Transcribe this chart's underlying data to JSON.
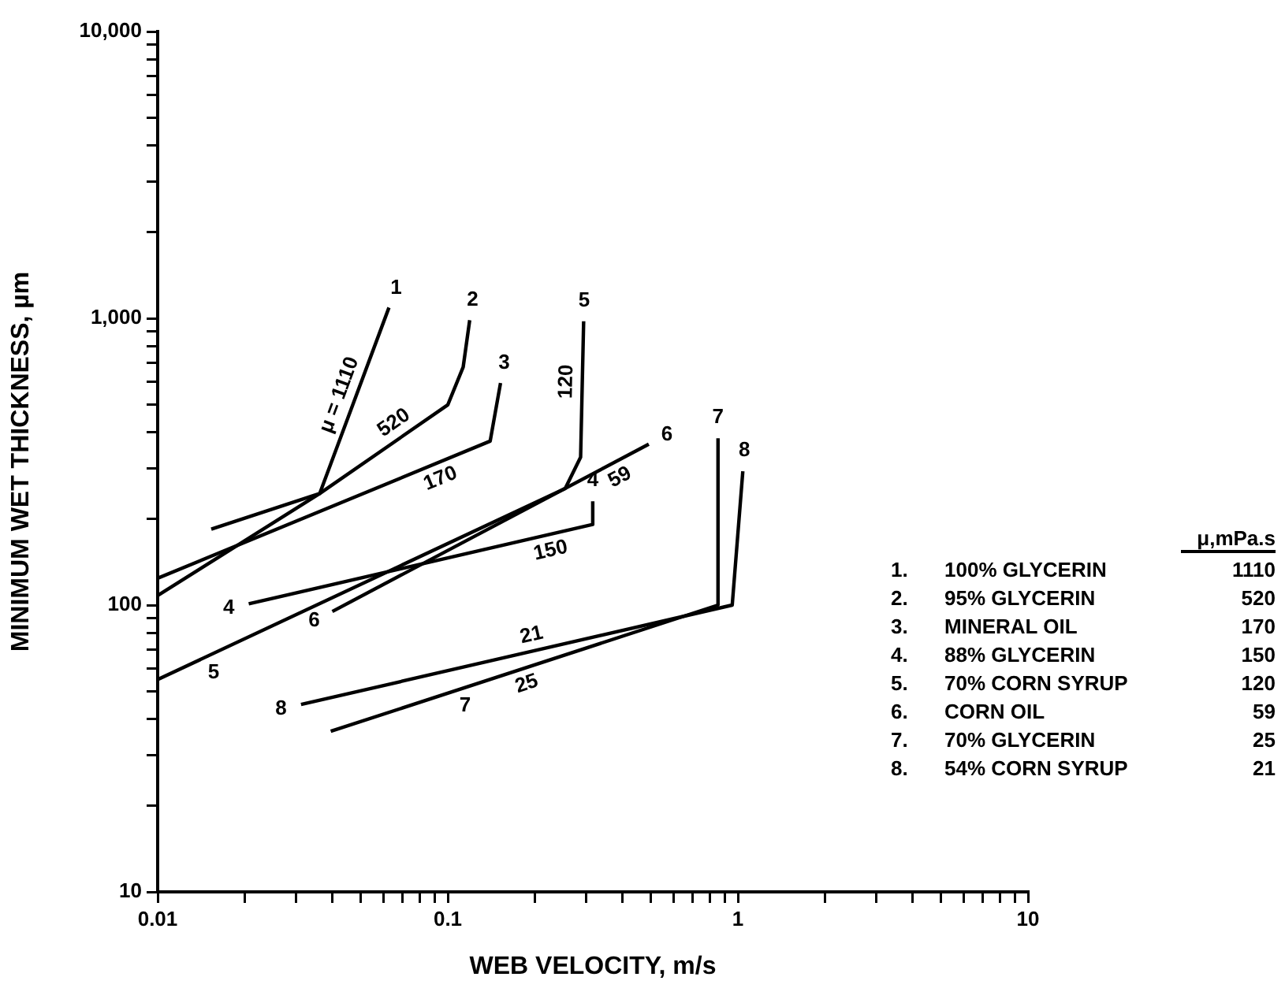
{
  "chart_data": {
    "type": "line",
    "xlabel": "WEB VELOCITY, m/s",
    "ylabel": "MINIMUM WET THICKNESS, µm",
    "log": "xy",
    "xlim": [
      0.01,
      10
    ],
    "ylim": [
      10,
      10000
    ],
    "xticks": [
      0.01,
      {
        "value": 0.02,
        "label": null
      },
      {
        "value": 0.03,
        "label": null
      },
      {
        "value": 0.04,
        "label": null
      },
      {
        "value": 0.05,
        "label": null
      },
      {
        "value": 0.06,
        "label": null
      },
      {
        "value": 0.07,
        "label": null
      },
      {
        "value": 0.08,
        "label": null
      },
      {
        "value": 0.09,
        "label": null
      },
      0.1,
      {
        "value": 0.2,
        "label": null
      },
      {
        "value": 0.3,
        "label": null
      },
      {
        "value": 0.4,
        "label": null
      },
      {
        "value": 0.5,
        "label": null
      },
      {
        "value": 0.6,
        "label": null
      },
      {
        "value": 0.7,
        "label": null
      },
      {
        "value": 0.8,
        "label": null
      },
      {
        "value": 0.9,
        "label": null
      },
      1,
      {
        "value": 2,
        "label": null
      },
      {
        "value": 3,
        "label": null
      },
      {
        "value": 4,
        "label": null
      },
      {
        "value": 5,
        "label": null
      },
      {
        "value": 6,
        "label": null
      },
      {
        "value": 7,
        "label": null
      },
      {
        "value": 8,
        "label": null
      },
      {
        "value": 9,
        "label": null
      },
      10
    ],
    "yticks": [
      10,
      {
        "value": 20,
        "label": null
      },
      {
        "value": 30,
        "label": null
      },
      {
        "value": 40,
        "label": null
      },
      {
        "value": 50,
        "label": null
      },
      {
        "value": 60,
        "label": null
      },
      {
        "value": 70,
        "label": null
      },
      {
        "value": 80,
        "label": null
      },
      {
        "value": 90,
        "label": null
      },
      100,
      {
        "value": 200,
        "label": null
      },
      {
        "value": 300,
        "label": null
      },
      {
        "value": 400,
        "label": null
      },
      {
        "value": 500,
        "label": null
      },
      {
        "value": 600,
        "label": null
      },
      {
        "value": 700,
        "label": null
      },
      {
        "value": 800,
        "label": null
      },
      {
        "value": 900,
        "label": null
      },
      {
        "value": 1000,
        "label": "1,000"
      },
      {
        "value": 2000,
        "label": null
      },
      {
        "value": 3000,
        "label": null
      },
      {
        "value": 4000,
        "label": null
      },
      {
        "value": 5000,
        "label": null
      },
      {
        "value": 6000,
        "label": null
      },
      {
        "value": 7000,
        "label": null
      },
      {
        "value": 8000,
        "label": null
      },
      {
        "value": 9000,
        "label": null
      },
      {
        "value": 10000,
        "label": "10,000"
      }
    ],
    "grid": false,
    "legend": false,
    "marker": "none",
    "line_style": "solid",
    "series": [
      {
        "color": "#000000",
        "x": [
          0.0153,
          0.0362,
          0.0627
        ],
        "values": [
          184,
          245,
          1090
        ]
      },
      {
        "color": "#000000",
        "x": [
          0.01,
          0.0362,
          0.1,
          0.113,
          0.119
        ],
        "values": [
          108,
          245,
          499,
          676,
          985
        ]
      },
      {
        "color": "#000000",
        "x": [
          0.01,
          0.14,
          0.152
        ],
        "values": [
          124,
          373,
          595
        ]
      },
      {
        "color": "#000000",
        "x": [
          0.0206,
          0.316,
          0.316
        ],
        "values": [
          101,
          191,
          230
        ]
      },
      {
        "color": "#000000",
        "x": [
          0.01,
          0.254,
          0.287,
          0.294
        ],
        "values": [
          55,
          255,
          328,
          977
        ]
      },
      {
        "color": "#000000",
        "x": [
          0.04,
          0.493
        ],
        "values": [
          95,
          364
        ]
      },
      {
        "color": "#000000",
        "x": [
          0.0395,
          0.854,
          0.854
        ],
        "values": [
          36.3,
          100,
          382
        ]
      },
      {
        "color": "#000000",
        "x": [
          0.0312,
          0.956,
          1.04
        ],
        "values": [
          45,
          100,
          293
        ]
      }
    ],
    "annotations": [
      {
        "text": "μ = 1110",
        "x": 0.0476,
        "y": 517
      },
      {
        "text": "520",
        "x": 0.07,
        "y": 389
      },
      {
        "text": "170",
        "x": 0.09,
        "y": 310
      },
      {
        "text": "150",
        "x": 0.22,
        "y": 175
      },
      {
        "text": "120",
        "x": 0.2908,
        "y": 600
      },
      {
        "text": "59",
        "x": 0.37,
        "y": 312
      },
      {
        "text": "21",
        "x": 0.2,
        "y": 69.4
      },
      {
        "text": "25",
        "x": 0.18,
        "y": 59.8
      },
      {
        "text": "4",
        "x": 0.0206,
        "y": 101
      },
      {
        "text": "5",
        "x": 0.0147,
        "y": 66
      },
      {
        "text": "6",
        "x": 0.04,
        "y": 95
      },
      {
        "text": "7",
        "x": 0.11,
        "y": 50.9
      },
      {
        "text": "8",
        "x": 0.0312,
        "y": 45
      },
      {
        "text": "1",
        "x": 0.0627,
        "y": 1090
      },
      {
        "text": "2",
        "x": 0.119,
        "y": 985
      },
      {
        "text": "3",
        "x": 0.152,
        "y": 595
      },
      {
        "text": "4",
        "x": 0.316,
        "y": 230
      },
      {
        "text": "5",
        "x": 0.294,
        "y": 977
      },
      {
        "text": "6",
        "x": 0.493,
        "y": 364
      },
      {
        "text": "7",
        "x": 0.854,
        "y": 382
      },
      {
        "text": "8",
        "x": 1.04,
        "y": 293
      },
      "μ,mPa.s",
      "1.\t100% GLYCERIN\t1110",
      "2.\t95% GLYCERIN\t520",
      "3.\tMINERAL OIL\t170",
      "4.\t88% GLYCERIN\t150",
      "5.\t70% CORN SYRUP\t120",
      "6.\tCORN OIL\t59",
      "7.\t70% GLYCERIN\t25",
      "8.\t54% CORN SYRUP\t21"
    ]
  }
}
